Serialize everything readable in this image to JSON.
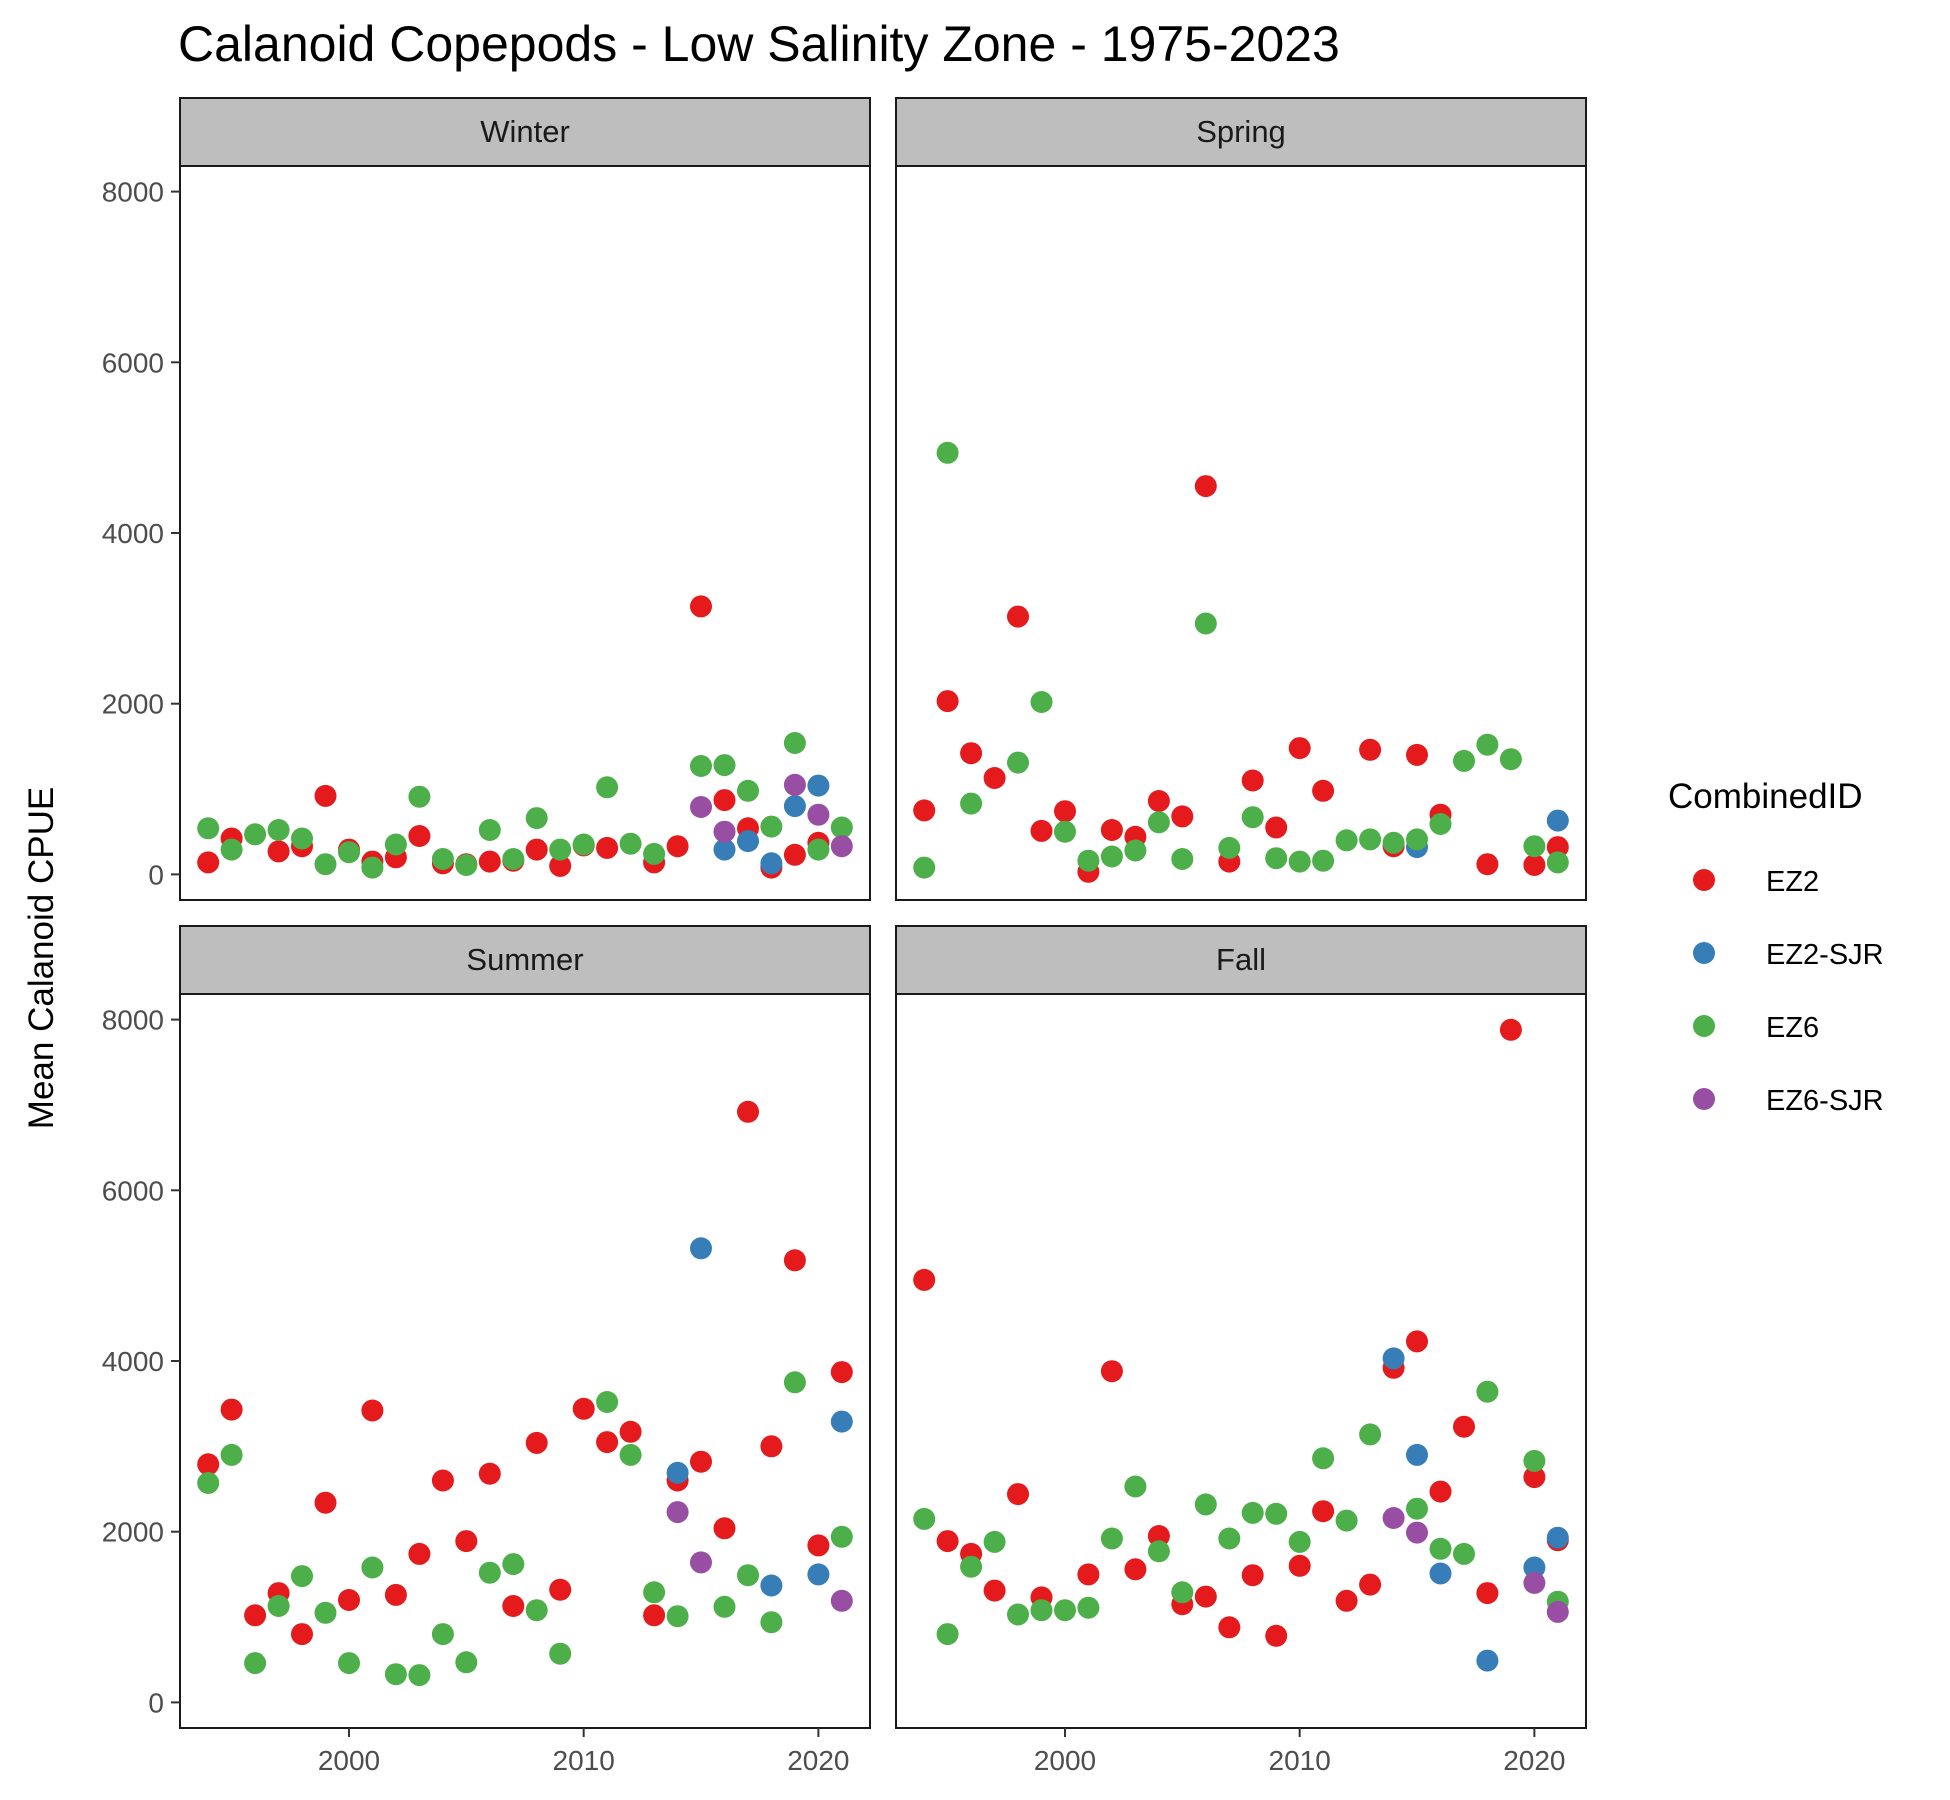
{
  "chart_data": {
    "type": "scatter",
    "title": "Calanoid Copepods - Low Salinity Zone - 1975-2023",
    "xlabel": "",
    "ylabel": "Mean Calanoid CPUE",
    "xlim": [
      1992.8,
      2022.2
    ],
    "ylim": [
      -300,
      8300
    ],
    "xticks": [
      2000,
      2010,
      2020
    ],
    "yticks": [
      0,
      2000,
      4000,
      6000,
      8000
    ],
    "facet_layout": "2x2 grid, shared axes",
    "legend": {
      "title": "CombinedID",
      "position": "right"
    },
    "grid": false,
    "series": [
      {
        "name": "EZ2",
        "color": "#e41a1c"
      },
      {
        "name": "EZ2-SJR",
        "color": "#377eb8"
      },
      {
        "name": "EZ6",
        "color": "#4daf4a"
      },
      {
        "name": "EZ6-SJR",
        "color": "#984ea3"
      }
    ],
    "panels": [
      {
        "season": "Winter",
        "points": {
          "EZ2": [
            [
              1994,
              140
            ],
            [
              1995,
              420
            ],
            [
              1997,
              270
            ],
            [
              1998,
              330
            ],
            [
              1999,
              920
            ],
            [
              2000,
              290
            ],
            [
              2001,
              150
            ],
            [
              2002,
              200
            ],
            [
              2003,
              450
            ],
            [
              2004,
              130
            ],
            [
              2005,
              120
            ],
            [
              2006,
              150
            ],
            [
              2007,
              160
            ],
            [
              2008,
              290
            ],
            [
              2009,
              100
            ],
            [
              2010,
              340
            ],
            [
              2011,
              310
            ],
            [
              2013,
              140
            ],
            [
              2014,
              330
            ],
            [
              2015,
              3140
            ],
            [
              2016,
              870
            ],
            [
              2017,
              540
            ],
            [
              2018,
              80
            ],
            [
              2019,
              230
            ],
            [
              2020,
              370
            ]
          ],
          "EZ2-SJR": [
            [
              2016,
              290
            ],
            [
              2017,
              390
            ],
            [
              2018,
              130
            ],
            [
              2019,
              800
            ],
            [
              2020,
              1040
            ]
          ],
          "EZ6": [
            [
              1994,
              540
            ],
            [
              1995,
              290
            ],
            [
              1996,
              470
            ],
            [
              1997,
              520
            ],
            [
              1998,
              420
            ],
            [
              1999,
              120
            ],
            [
              2000,
              260
            ],
            [
              2001,
              80
            ],
            [
              2002,
              350
            ],
            [
              2003,
              910
            ],
            [
              2004,
              180
            ],
            [
              2005,
              110
            ],
            [
              2006,
              520
            ],
            [
              2007,
              180
            ],
            [
              2008,
              660
            ],
            [
              2009,
              290
            ],
            [
              2010,
              350
            ],
            [
              2011,
              1020
            ],
            [
              2012,
              360
            ],
            [
              2013,
              240
            ],
            [
              2015,
              1270
            ],
            [
              2016,
              1280
            ],
            [
              2017,
              980
            ],
            [
              2018,
              560
            ],
            [
              2019,
              1540
            ],
            [
              2020,
              290
            ],
            [
              2021,
              550
            ]
          ],
          "EZ6-SJR": [
            [
              2015,
              790
            ],
            [
              2016,
              500
            ],
            [
              2019,
              1050
            ],
            [
              2020,
              700
            ],
            [
              2021,
              330
            ]
          ]
        }
      },
      {
        "season": "Spring",
        "points": {
          "EZ2": [
            [
              1994,
              750
            ],
            [
              1995,
              2030
            ],
            [
              1996,
              1420
            ],
            [
              1997,
              1130
            ],
            [
              1998,
              3020
            ],
            [
              1999,
              510
            ],
            [
              2000,
              740
            ],
            [
              2001,
              30
            ],
            [
              2002,
              520
            ],
            [
              2003,
              440
            ],
            [
              2004,
              860
            ],
            [
              2005,
              680
            ],
            [
              2006,
              4550
            ],
            [
              2007,
              150
            ],
            [
              2008,
              1100
            ],
            [
              2009,
              550
            ],
            [
              2010,
              1480
            ],
            [
              2011,
              980
            ],
            [
              2013,
              1460
            ],
            [
              2014,
              330
            ],
            [
              2015,
              1400
            ],
            [
              2016,
              700
            ],
            [
              2018,
              120
            ],
            [
              2020,
              110
            ],
            [
              2021,
              320
            ]
          ],
          "EZ2-SJR": [
            [
              2015,
              320
            ],
            [
              2021,
              630
            ]
          ],
          "EZ6": [
            [
              1994,
              80
            ],
            [
              1995,
              4940
            ],
            [
              1996,
              830
            ],
            [
              1998,
              1310
            ],
            [
              1999,
              2020
            ],
            [
              2000,
              500
            ],
            [
              2001,
              160
            ],
            [
              2002,
              210
            ],
            [
              2003,
              280
            ],
            [
              2004,
              610
            ],
            [
              2005,
              180
            ],
            [
              2006,
              2940
            ],
            [
              2007,
              310
            ],
            [
              2008,
              670
            ],
            [
              2009,
              190
            ],
            [
              2010,
              150
            ],
            [
              2011,
              160
            ],
            [
              2012,
              400
            ],
            [
              2013,
              410
            ],
            [
              2014,
              370
            ],
            [
              2015,
              410
            ],
            [
              2016,
              590
            ],
            [
              2017,
              1330
            ],
            [
              2018,
              1520
            ],
            [
              2019,
              1350
            ],
            [
              2020,
              330
            ],
            [
              2021,
              140
            ]
          ],
          "EZ6-SJR": []
        }
      },
      {
        "season": "Summer",
        "points": {
          "EZ2": [
            [
              1994,
              2790
            ],
            [
              1995,
              3430
            ],
            [
              1996,
              1020
            ],
            [
              1997,
              1280
            ],
            [
              1998,
              800
            ],
            [
              1999,
              2340
            ],
            [
              2000,
              1200
            ],
            [
              2001,
              3420
            ],
            [
              2002,
              1260
            ],
            [
              2003,
              1740
            ],
            [
              2004,
              2600
            ],
            [
              2005,
              1890
            ],
            [
              2006,
              2680
            ],
            [
              2007,
              1130
            ],
            [
              2008,
              3040
            ],
            [
              2009,
              1320
            ],
            [
              2010,
              3440
            ],
            [
              2011,
              3050
            ],
            [
              2012,
              3170
            ],
            [
              2013,
              1020
            ],
            [
              2014,
              2600
            ],
            [
              2015,
              2820
            ],
            [
              2016,
              2040
            ],
            [
              2017,
              6920
            ],
            [
              2018,
              3000
            ],
            [
              2019,
              5180
            ],
            [
              2020,
              1840
            ],
            [
              2021,
              3870
            ]
          ],
          "EZ2-SJR": [
            [
              2014,
              2690
            ],
            [
              2015,
              5320
            ],
            [
              2018,
              1370
            ],
            [
              2020,
              1500
            ],
            [
              2021,
              3290
            ]
          ],
          "EZ6": [
            [
              1994,
              2570
            ],
            [
              1995,
              2900
            ],
            [
              1996,
              460
            ],
            [
              1997,
              1130
            ],
            [
              1998,
              1480
            ],
            [
              1999,
              1050
            ],
            [
              2000,
              460
            ],
            [
              2001,
              1580
            ],
            [
              2002,
              330
            ],
            [
              2003,
              320
            ],
            [
              2004,
              800
            ],
            [
              2005,
              470
            ],
            [
              2006,
              1520
            ],
            [
              2007,
              1620
            ],
            [
              2008,
              1080
            ],
            [
              2009,
              570
            ],
            [
              2011,
              3520
            ],
            [
              2012,
              2900
            ],
            [
              2013,
              1290
            ],
            [
              2014,
              1010
            ],
            [
              2016,
              1120
            ],
            [
              2017,
              1490
            ],
            [
              2018,
              940
            ],
            [
              2019,
              3750
            ],
            [
              2021,
              1940
            ]
          ],
          "EZ6-SJR": [
            [
              2014,
              2230
            ],
            [
              2015,
              1640
            ],
            [
              2021,
              1190
            ]
          ]
        }
      },
      {
        "season": "Fall",
        "points": {
          "EZ2": [
            [
              1994,
              4950
            ],
            [
              1995,
              1890
            ],
            [
              1996,
              1740
            ],
            [
              1997,
              1310
            ],
            [
              1998,
              2440
            ],
            [
              1999,
              1230
            ],
            [
              2001,
              1500
            ],
            [
              2002,
              3880
            ],
            [
              2003,
              1560
            ],
            [
              2004,
              1950
            ],
            [
              2005,
              1150
            ],
            [
              2006,
              1240
            ],
            [
              2007,
              880
            ],
            [
              2008,
              1490
            ],
            [
              2009,
              780
            ],
            [
              2010,
              1600
            ],
            [
              2011,
              2240
            ],
            [
              2012,
              1190
            ],
            [
              2013,
              1380
            ],
            [
              2014,
              3920
            ],
            [
              2015,
              4230
            ],
            [
              2016,
              2470
            ],
            [
              2017,
              3230
            ],
            [
              2018,
              1280
            ],
            [
              2019,
              7880
            ],
            [
              2020,
              2640
            ],
            [
              2021,
              1900
            ]
          ],
          "EZ2-SJR": [
            [
              2014,
              4030
            ],
            [
              2015,
              2900
            ],
            [
              2016,
              1510
            ],
            [
              2018,
              490
            ],
            [
              2020,
              1580
            ],
            [
              2021,
              1930
            ]
          ],
          "EZ6": [
            [
              1994,
              2150
            ],
            [
              1995,
              800
            ],
            [
              1996,
              1590
            ],
            [
              1997,
              1880
            ],
            [
              1998,
              1030
            ],
            [
              1999,
              1080
            ],
            [
              2000,
              1080
            ],
            [
              2001,
              1110
            ],
            [
              2002,
              1920
            ],
            [
              2003,
              2530
            ],
            [
              2004,
              1770
            ],
            [
              2005,
              1290
            ],
            [
              2006,
              2320
            ],
            [
              2007,
              1920
            ],
            [
              2008,
              2220
            ],
            [
              2009,
              2210
            ],
            [
              2010,
              1880
            ],
            [
              2011,
              2860
            ],
            [
              2012,
              2130
            ],
            [
              2013,
              3140
            ],
            [
              2015,
              2270
            ],
            [
              2016,
              1800
            ],
            [
              2017,
              1740
            ],
            [
              2018,
              3640
            ],
            [
              2020,
              2830
            ],
            [
              2021,
              1180
            ]
          ],
          "EZ6-SJR": [
            [
              2014,
              2160
            ],
            [
              2015,
              1990
            ],
            [
              2020,
              1400
            ],
            [
              2021,
              1060
            ]
          ]
        }
      }
    ]
  }
}
